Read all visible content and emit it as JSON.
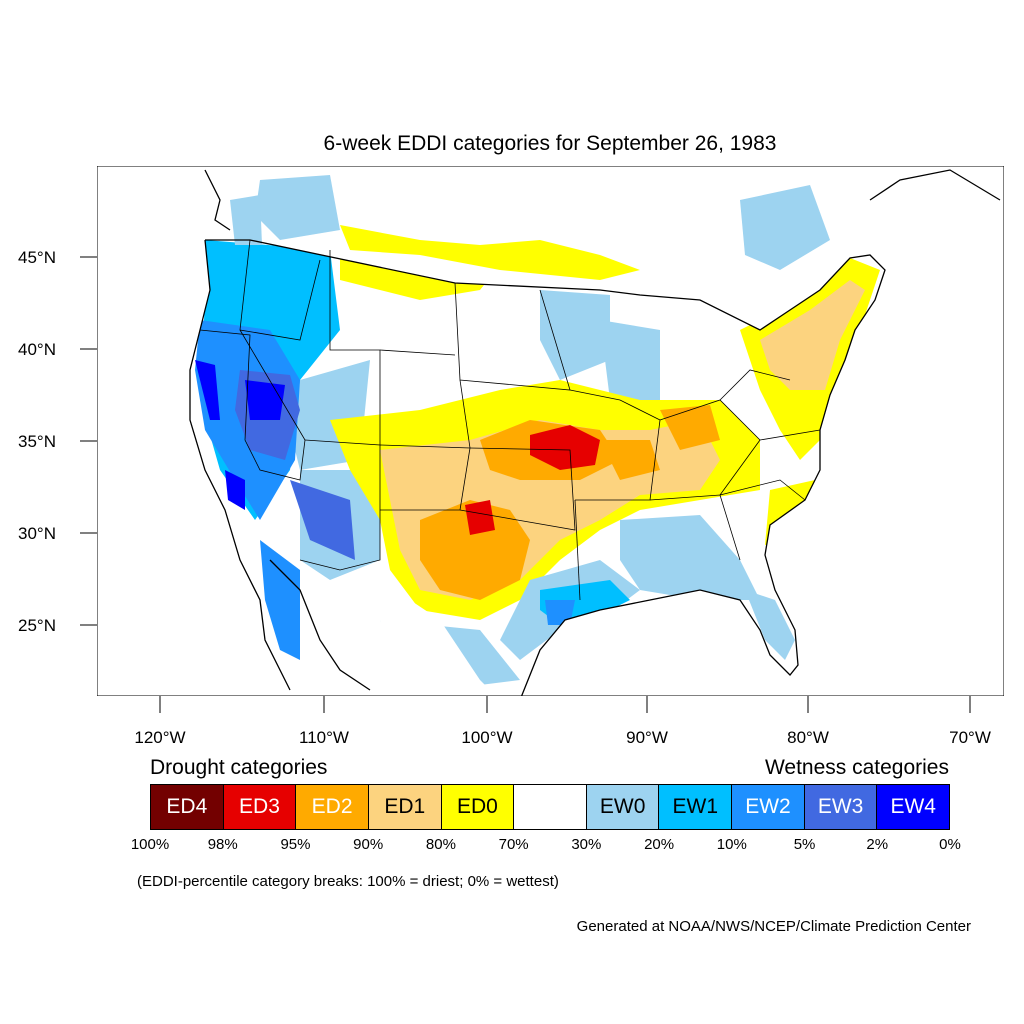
{
  "title": "6-week EDDI categories for September 26, 1983",
  "axes": {
    "lat_labels": [
      "45°N",
      "40°N",
      "35°N",
      "30°N",
      "25°N"
    ],
    "lon_labels": [
      "120°W",
      "110°W",
      "100°W",
      "90°W",
      "80°W",
      "70°W"
    ]
  },
  "legend": {
    "drought_heading": "Drought categories",
    "wetness_heading": "Wetness categories",
    "swatches": [
      {
        "label": "ED4",
        "color": "#730000",
        "text_color": "#ffffff"
      },
      {
        "label": "ED3",
        "color": "#e60000",
        "text_color": "#ffffff"
      },
      {
        "label": "ED2",
        "color": "#ffaa00",
        "text_color": "#ffffff"
      },
      {
        "label": "ED1",
        "color": "#fcd37f",
        "text_color": "#000000"
      },
      {
        "label": "ED0",
        "color": "#ffff00",
        "text_color": "#000000"
      },
      {
        "label": "",
        "color": "#ffffff",
        "text_color": "#000000"
      },
      {
        "label": "EW0",
        "color": "#9dd3f0",
        "text_color": "#000000"
      },
      {
        "label": "EW1",
        "color": "#00bfff",
        "text_color": "#000000"
      },
      {
        "label": "EW2",
        "color": "#1e90ff",
        "text_color": "#ffffff"
      },
      {
        "label": "EW3",
        "color": "#4169e1",
        "text_color": "#ffffff"
      },
      {
        "label": "EW4",
        "color": "#0000ff",
        "text_color": "#ffffff"
      }
    ],
    "percentiles": [
      "100%",
      "98%",
      "95%",
      "90%",
      "80%",
      "70%",
      "30%",
      "20%",
      "10%",
      "5%",
      "2%",
      "0%"
    ]
  },
  "note": "(EDDI-percentile category breaks: 100% = driest; 0% = wettest)",
  "credit": "Generated at NOAA/NWS/NCEP/Climate Prediction Center"
}
